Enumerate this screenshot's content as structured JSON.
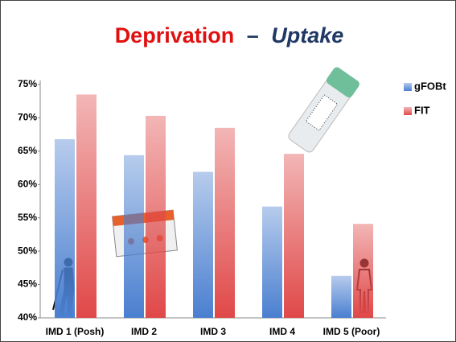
{
  "chart_data": {
    "type": "bar",
    "title_parts": [
      "Deprivation",
      "–",
      "Uptake"
    ],
    "categories": [
      "IMD 1 (Posh)",
      "IMD 2",
      "IMD 3",
      "IMD 4",
      "IMD 5 (Poor)"
    ],
    "series": [
      {
        "name": "gFOBt",
        "color": "#4a7fd0",
        "values": [
          66.8,
          64.4,
          61.9,
          56.7,
          46.3
        ]
      },
      {
        "name": "FIT",
        "color": "#e04848",
        "values": [
          73.5,
          70.3,
          68.5,
          64.6,
          54.1
        ]
      }
    ],
    "ylim": [
      40,
      75
    ],
    "yticks": [
      {
        "value": 40,
        "label": "40%"
      },
      {
        "value": 45,
        "label": "45%"
      },
      {
        "value": 50,
        "label": "50%"
      },
      {
        "value": 55,
        "label": "55%"
      },
      {
        "value": 60,
        "label": "60%"
      },
      {
        "value": 65,
        "label": "65%"
      },
      {
        "value": 70,
        "label": "70%"
      },
      {
        "value": 75,
        "label": "75%"
      }
    ],
    "legend": "right"
  }
}
